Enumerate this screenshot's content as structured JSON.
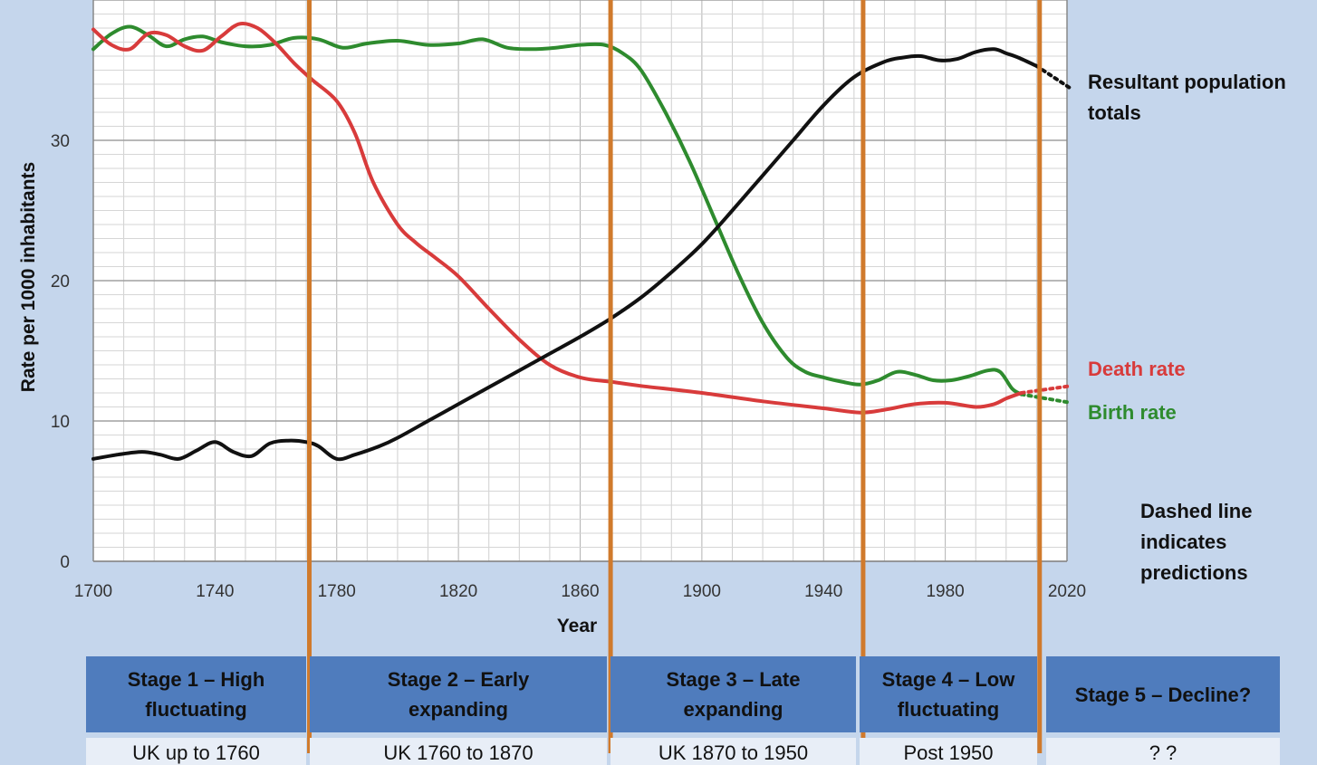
{
  "chart_data": {
    "type": "line",
    "title": "",
    "xlabel": "Year",
    "ylabel": "Rate per 1000 inhabitants",
    "xlim": [
      1700,
      2020
    ],
    "ylim": [
      0,
      40
    ],
    "x_ticks": [
      "1700",
      "1740",
      "1780",
      "1820",
      "1860",
      "1900",
      "1940",
      "1980",
      "2020"
    ],
    "y_ticks": [
      "0",
      "10",
      "20",
      "30"
    ],
    "grid": true,
    "series": [
      {
        "name": "Birth rate",
        "color": "#2e8b2e",
        "x": [
          1700,
          1706,
          1712,
          1718,
          1724,
          1730,
          1736,
          1742,
          1750,
          1758,
          1766,
          1774,
          1782,
          1790,
          1800,
          1810,
          1820,
          1828,
          1836,
          1844,
          1852,
          1860,
          1868,
          1874,
          1880,
          1888,
          1896,
          1904,
          1912,
          1920,
          1928,
          1934,
          1940,
          1946,
          1952,
          1958,
          1964,
          1970,
          1976,
          1982,
          1988,
          1994,
          1998,
          2002,
          2005
        ],
        "y": [
          36.5,
          37.6,
          38.1,
          37.5,
          36.7,
          37.2,
          37.4,
          37.0,
          36.7,
          36.8,
          37.3,
          37.2,
          36.6,
          36.9,
          37.1,
          36.8,
          36.9,
          37.2,
          36.6,
          36.5,
          36.6,
          36.8,
          36.8,
          36.2,
          35.0,
          32.0,
          28.5,
          24.5,
          20.5,
          17.0,
          14.5,
          13.5,
          13.1,
          12.8,
          12.6,
          12.9,
          13.5,
          13.3,
          12.9,
          12.9,
          13.2,
          13.6,
          13.5,
          12.3,
          11.9
        ],
        "predicted": {
          "x": [
            2005,
            2020
          ],
          "y": [
            11.9,
            11.3
          ]
        }
      },
      {
        "name": "Death rate",
        "color": "#d83b3b",
        "x": [
          1700,
          1706,
          1712,
          1718,
          1724,
          1730,
          1736,
          1742,
          1748,
          1754,
          1760,
          1766,
          1772,
          1780,
          1786,
          1792,
          1800,
          1806,
          1812,
          1820,
          1830,
          1840,
          1850,
          1860,
          1870,
          1880,
          1900,
          1920,
          1940,
          1952,
          1960,
          1970,
          1980,
          1990,
          1996,
          2000,
          2005
        ],
        "y": [
          37.9,
          36.8,
          36.5,
          37.6,
          37.5,
          36.7,
          36.4,
          37.4,
          38.3,
          38.0,
          36.9,
          35.5,
          34.3,
          32.8,
          30.5,
          27.0,
          24.0,
          22.7,
          21.7,
          20.3,
          18.0,
          15.8,
          14.0,
          13.1,
          12.8,
          12.5,
          12.0,
          11.4,
          10.9,
          10.6,
          10.8,
          11.2,
          11.3,
          11.0,
          11.2,
          11.6,
          12.0
        ],
        "predicted": {
          "x": [
            2005,
            2020
          ],
          "y": [
            12.0,
            12.5
          ]
        }
      },
      {
        "name": "Resultant population totals",
        "color": "#111111",
        "x": [
          1700,
          1708,
          1716,
          1722,
          1728,
          1734,
          1740,
          1746,
          1752,
          1758,
          1764,
          1770,
          1774,
          1780,
          1786,
          1794,
          1800,
          1810,
          1820,
          1830,
          1840,
          1850,
          1860,
          1870,
          1880,
          1890,
          1900,
          1910,
          1920,
          1930,
          1940,
          1950,
          1960,
          1966,
          1972,
          1978,
          1984,
          1990,
          1996,
          2000,
          2004,
          2010
        ],
        "y": [
          7.3,
          7.6,
          7.8,
          7.6,
          7.3,
          7.9,
          8.5,
          7.8,
          7.5,
          8.4,
          8.6,
          8.5,
          8.2,
          7.3,
          7.6,
          8.2,
          8.8,
          10.0,
          11.2,
          12.4,
          13.6,
          14.8,
          16.0,
          17.3,
          18.8,
          20.6,
          22.6,
          25.0,
          27.5,
          30.0,
          32.5,
          34.5,
          35.6,
          35.9,
          36.0,
          35.7,
          35.8,
          36.3,
          36.5,
          36.2,
          35.9,
          35.3
        ],
        "predicted": {
          "x": [
            2010,
            2020
          ],
          "y": [
            35.3,
            33.7
          ]
        }
      }
    ],
    "stage_boundaries": [
      1771,
      1870,
      1953,
      2011
    ],
    "stage_color": "#d07a2c"
  },
  "annotations": {
    "population_line1": "Resultant population",
    "population_line2": "totals",
    "death_rate": "Death rate",
    "birth_rate": "Birth rate",
    "dashed_line1": "Dashed line",
    "dashed_line2": "indicates",
    "dashed_line3": "predictions"
  },
  "stages": [
    {
      "line1": "Stage 1 – High",
      "line2": "fluctuating",
      "row2": "UK up to 1760"
    },
    {
      "line1": "Stage 2 – Early",
      "line2": "expanding",
      "row2": "UK 1760 to 1870"
    },
    {
      "line1": "Stage 3 – Late",
      "line2": "expanding",
      "row2": "UK 1870 to 1950"
    },
    {
      "line1": "Stage 4 – Low",
      "line2": "fluctuating",
      "row2": "Post 1950"
    },
    {
      "line1": "Stage 5 – Decline?",
      "line2": "",
      "row2": "? ?"
    }
  ]
}
